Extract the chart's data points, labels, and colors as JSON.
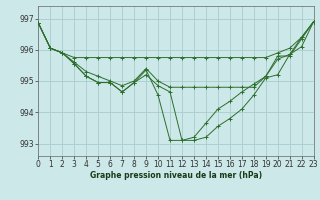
{
  "title": "Graphe pression niveau de la mer (hPa)",
  "bg_color": "#cce8e8",
  "grid_color": "#aacccc",
  "line_color": "#2d6e2d",
  "xlim": [
    0,
    23
  ],
  "ylim": [
    992.6,
    997.4
  ],
  "yticks": [
    993,
    994,
    995,
    996,
    997
  ],
  "xticks": [
    0,
    1,
    2,
    3,
    4,
    5,
    6,
    7,
    8,
    9,
    10,
    11,
    12,
    13,
    14,
    15,
    16,
    17,
    18,
    19,
    20,
    21,
    22,
    23
  ],
  "series": [
    [
      996.85,
      996.05,
      995.9,
      995.75,
      995.75,
      995.75,
      995.75,
      995.75,
      995.75,
      995.75,
      995.75,
      995.75,
      995.75,
      995.75,
      995.75,
      995.75,
      995.75,
      995.75,
      995.75,
      995.75,
      995.9,
      996.05,
      996.4,
      996.9
    ],
    [
      996.85,
      996.05,
      995.9,
      995.6,
      995.3,
      995.15,
      995.0,
      994.85,
      995.0,
      995.4,
      995.0,
      994.8,
      994.8,
      994.8,
      994.8,
      994.8,
      994.8,
      994.8,
      994.8,
      995.15,
      995.7,
      995.85,
      996.4,
      996.9
    ],
    [
      996.85,
      996.05,
      995.9,
      995.55,
      995.15,
      994.95,
      994.95,
      994.65,
      994.95,
      995.35,
      994.55,
      993.1,
      993.1,
      993.2,
      993.65,
      994.1,
      994.35,
      994.65,
      994.9,
      995.15,
      995.8,
      995.8,
      996.35,
      996.9
    ],
    [
      996.85,
      996.05,
      995.9,
      995.55,
      995.15,
      994.95,
      994.95,
      994.65,
      994.95,
      995.2,
      994.85,
      994.65,
      993.1,
      993.1,
      993.2,
      993.55,
      993.8,
      994.1,
      994.55,
      995.1,
      995.2,
      995.85,
      996.1,
      996.9
    ]
  ]
}
